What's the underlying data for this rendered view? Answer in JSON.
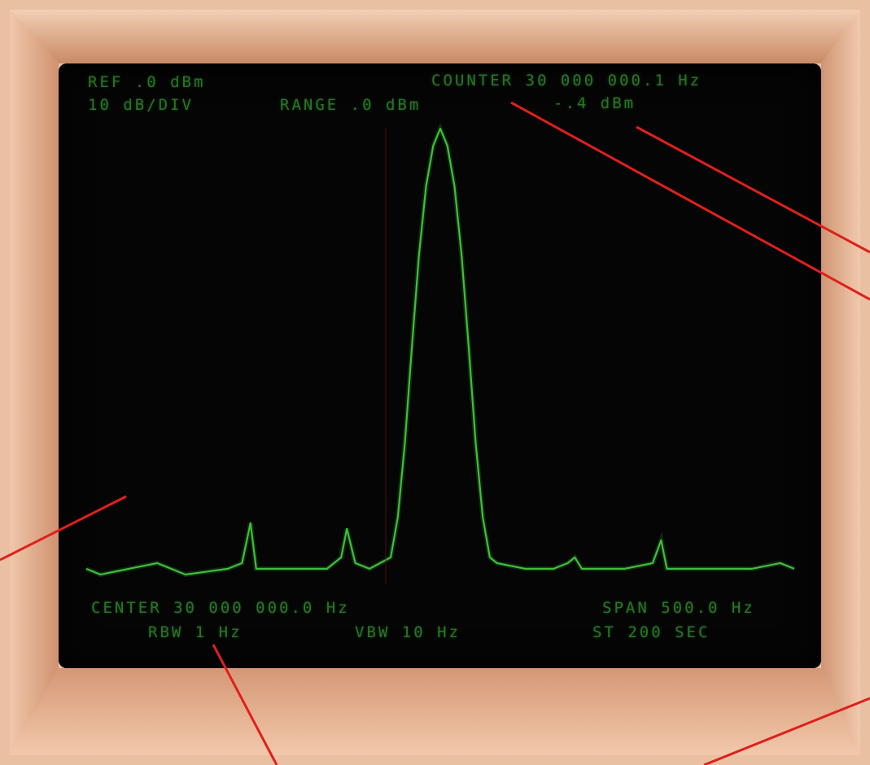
{
  "display": {
    "ref_level": "REF .0 dBm",
    "scale": "10 dB/DIV",
    "range": "RANGE .0 dBm",
    "counter": "COUNTER 30 000 000.1 Hz",
    "marker_level": "-.4 dBm",
    "center": "CENTER 30 000 000.0 Hz",
    "span": "SPAN 500.0 Hz",
    "rbw": "RBW 1 Hz",
    "vbw": "VBW 10 Hz",
    "sweep_time": "ST 200 SEC"
  },
  "colors": {
    "bezel": "#e8b99a",
    "screen": "#050505",
    "trace": "#3fbf3a",
    "text": "#2f8a2a",
    "leader": "#e0201a"
  },
  "chart_data": {
    "type": "line",
    "title": "",
    "xlabel": "",
    "ylabel": "",
    "x_unit": "Hz",
    "y_unit": "dBm",
    "ylim": [
      -80,
      0
    ],
    "xlim": [
      29999750,
      30000250
    ],
    "grid": false,
    "series": [
      {
        "values_note_free": true,
        "x": [
          29999750,
          29999760,
          29999780,
          29999800,
          29999810,
          29999820,
          29999850,
          29999860,
          29999866,
          29999870,
          29999880,
          29999900,
          29999920,
          29999930,
          29999934,
          29999940,
          29999950,
          29999965,
          29999970,
          29999975,
          29999980,
          29999985,
          29999990,
          29999995,
          30000000,
          30000005,
          30000010,
          30000015,
          30000020,
          30000025,
          30000030,
          30000035,
          30000040,
          30000060,
          30000080,
          30000090,
          30000095,
          30000100,
          30000130,
          30000150,
          30000156,
          30000160,
          30000180,
          30000200,
          30000220,
          30000240,
          30000250
        ],
        "y": [
          -77,
          -78,
          -77,
          -76,
          -77,
          -78,
          -77,
          -76,
          -69,
          -77,
          -77,
          -77,
          -77,
          -75,
          -70,
          -76,
          -77,
          -75,
          -68,
          -55,
          -38,
          -22,
          -10,
          -3,
          0,
          -3,
          -10,
          -22,
          -38,
          -55,
          -68,
          -75,
          -76,
          -77,
          -77,
          -76,
          -75,
          -77,
          -77,
          -76,
          -72,
          -77,
          -77,
          -77,
          -77,
          -76,
          -77
        ]
      }
    ]
  }
}
